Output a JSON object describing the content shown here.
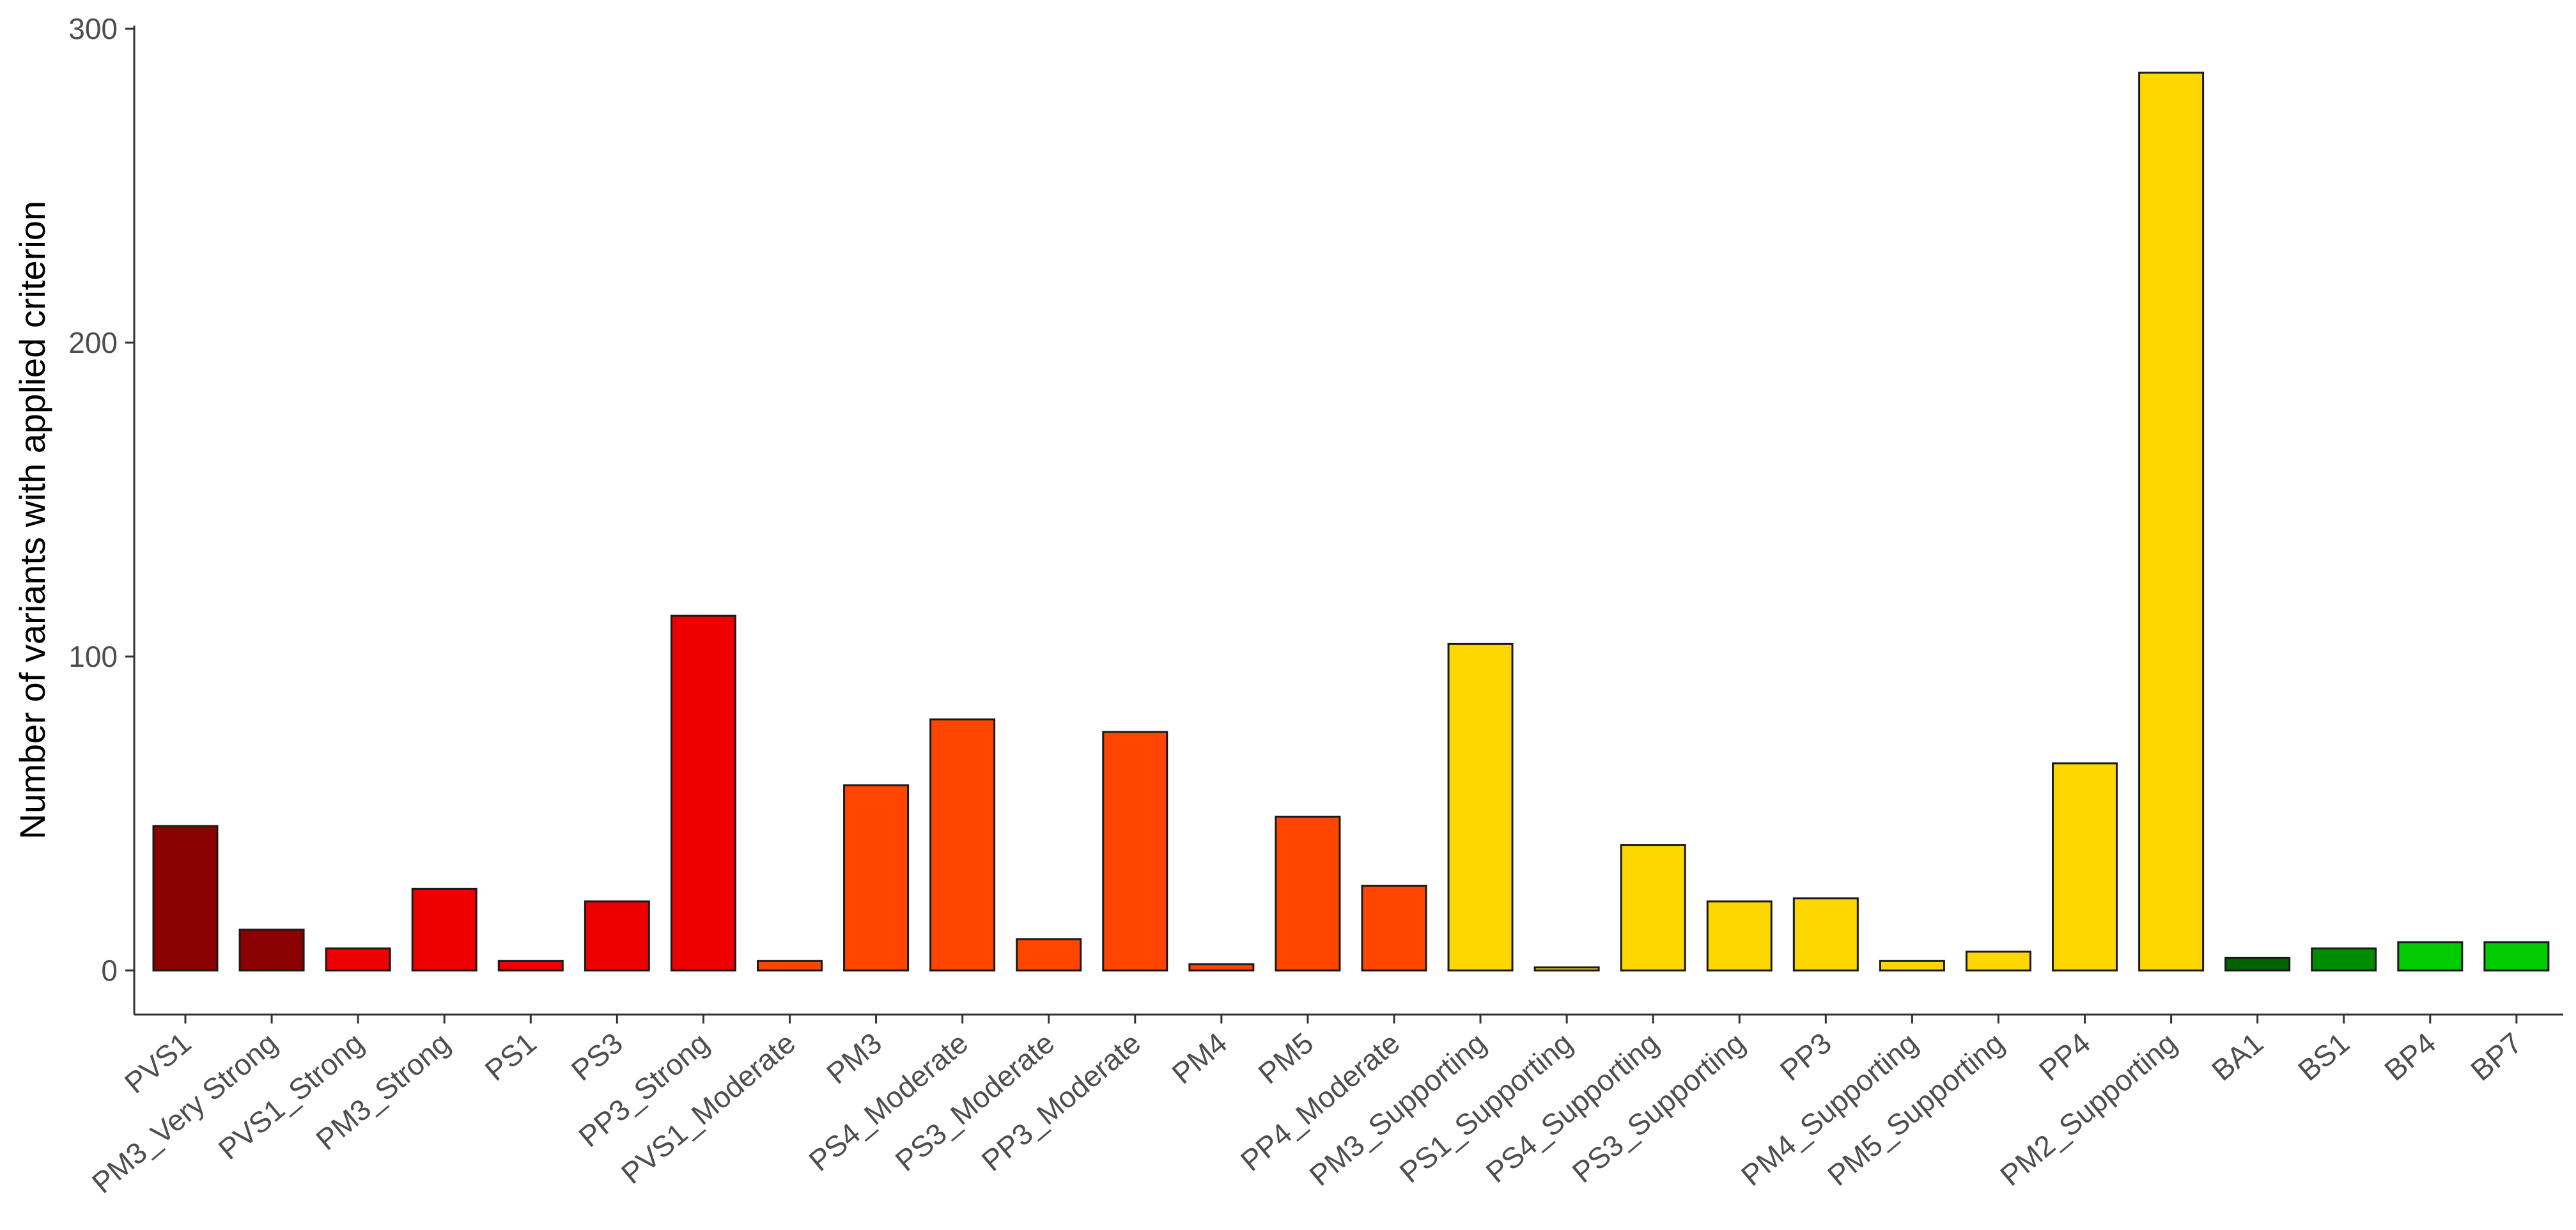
{
  "chart_data": {
    "type": "bar",
    "title": "",
    "xlabel": "",
    "ylabel": "Number of variants with applied criterion",
    "ylim": [
      -14,
      300
    ],
    "yticks": [
      0,
      100,
      200,
      300
    ],
    "grid": false,
    "legend": "none",
    "bars": [
      {
        "category": "PVS1",
        "value": 46,
        "color": "#8B0000"
      },
      {
        "category": "PM3_Very Strong",
        "value": 13,
        "color": "#8B0000"
      },
      {
        "category": "PVS1_Strong",
        "value": 7,
        "color": "#EE0000"
      },
      {
        "category": "PM3_Strong",
        "value": 26,
        "color": "#EE0000"
      },
      {
        "category": "PS1",
        "value": 3,
        "color": "#EE0000"
      },
      {
        "category": "PS3",
        "value": 22,
        "color": "#EE0000"
      },
      {
        "category": "PP3_Strong",
        "value": 113,
        "color": "#EE0000"
      },
      {
        "category": "PVS1_Moderate",
        "value": 3,
        "color": "#FF4500"
      },
      {
        "category": "PM3",
        "value": 59,
        "color": "#FF4500"
      },
      {
        "category": "PS4_Moderate",
        "value": 80,
        "color": "#FF4500"
      },
      {
        "category": "PS3_Moderate",
        "value": 10,
        "color": "#FF4500"
      },
      {
        "category": "PP3_Moderate",
        "value": 76,
        "color": "#FF4500"
      },
      {
        "category": "PM4",
        "value": 2,
        "color": "#FF4500"
      },
      {
        "category": "PM5",
        "value": 49,
        "color": "#FF4500"
      },
      {
        "category": "PP4_Moderate",
        "value": 27,
        "color": "#FF4500"
      },
      {
        "category": "PM3_Supporting",
        "value": 104,
        "color": "#FFD700"
      },
      {
        "category": "PS1_Supporting",
        "value": 1,
        "color": "#FFD700"
      },
      {
        "category": "PS4_Supporting",
        "value": 40,
        "color": "#FFD700"
      },
      {
        "category": "PS3_Supporting",
        "value": 22,
        "color": "#FFD700"
      },
      {
        "category": "PP3",
        "value": 23,
        "color": "#FFD700"
      },
      {
        "category": "PM4_Supporting",
        "value": 3,
        "color": "#FFD700"
      },
      {
        "category": "PM5_Supporting",
        "value": 6,
        "color": "#FFD700"
      },
      {
        "category": "PP4",
        "value": 66,
        "color": "#FFD700"
      },
      {
        "category": "PM2_Supporting",
        "value": 286,
        "color": "#FFD700"
      },
      {
        "category": "BA1",
        "value": 4,
        "color": "#006400"
      },
      {
        "category": "BS1",
        "value": 7,
        "color": "#008B00"
      },
      {
        "category": "BP4",
        "value": 9,
        "color": "#00CD00"
      },
      {
        "category": "BP7",
        "value": 9,
        "color": "#00CD00"
      }
    ]
  }
}
